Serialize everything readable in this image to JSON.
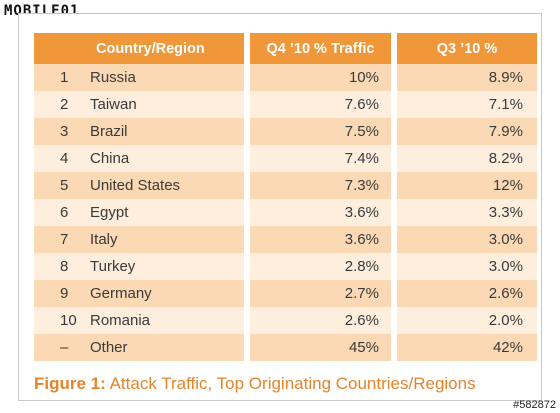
{
  "logo": {
    "text": "MOBILE01"
  },
  "table": {
    "headers": {
      "country": "Country/Region",
      "q4": "Q4 ’10 % Traffic",
      "q3": "Q3 ’10 %"
    },
    "rows": [
      {
        "rank": "1",
        "country": "Russia",
        "q4": "10%",
        "q3": "8.9%"
      },
      {
        "rank": "2",
        "country": "Taiwan",
        "q4": "7.6%",
        "q3": "7.1%"
      },
      {
        "rank": "3",
        "country": "Brazil",
        "q4": "7.5%",
        "q3": "7.9%"
      },
      {
        "rank": "4",
        "country": "China",
        "q4": "7.4%",
        "q3": "8.2%"
      },
      {
        "rank": "5",
        "country": "United States",
        "q4": "7.3%",
        "q3": "12%"
      },
      {
        "rank": "6",
        "country": "Egypt",
        "q4": "3.6%",
        "q3": "3.3%"
      },
      {
        "rank": "7",
        "country": "Italy",
        "q4": "3.6%",
        "q3": "3.0%"
      },
      {
        "rank": "8",
        "country": "Turkey",
        "q4": "2.8%",
        "q3": "3.0%"
      },
      {
        "rank": "9",
        "country": "Germany",
        "q4": "2.7%",
        "q3": "2.6%"
      },
      {
        "rank": "10",
        "country": "Romania",
        "q4": "2.6%",
        "q3": "2.0%"
      },
      {
        "rank": "–",
        "country": "Other",
        "q4": "45%",
        "q3": "42%"
      }
    ]
  },
  "caption": {
    "label": "Figure 1:",
    "text": "Attack Traffic, Top Originating Countries/Regions"
  },
  "watermark": {
    "text": "#582872"
  },
  "colors": {
    "header": "#f0973a",
    "row_dark": "#fbd9b4",
    "row_light": "#fdeedd",
    "caption": "#e5842b"
  }
}
